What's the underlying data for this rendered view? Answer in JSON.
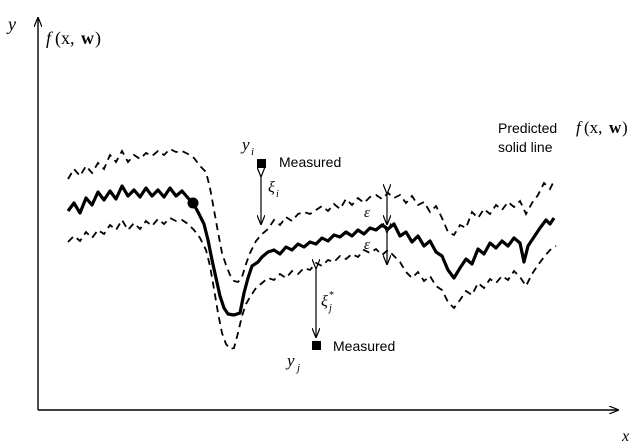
{
  "labels": {
    "y_axis": "y",
    "x_axis": "x",
    "f_axis_f": "f",
    "f_axis_args": "(x,",
    "f_axis_w": "w",
    "f_axis_close": ")",
    "y_i": "y",
    "y_i_sub": "i",
    "y_j": "y",
    "y_j_sub": "j",
    "xi_i": "ξ",
    "xi_i_sub": "i",
    "xi_j": "ξ",
    "xi_j_sub": "j",
    "xi_j_sup": "*",
    "eps_top": "ε",
    "eps_bottom": "ε",
    "measured_top": "Measured",
    "measured_bottom": "Measured",
    "predicted_line1": "Predicted",
    "predicted_line2": "solid line",
    "predicted_f": "f",
    "predicted_args": "(x,",
    "predicted_w": "w",
    "predicted_close": ")"
  },
  "colors": {
    "ink": "#000000",
    "background": "#ffffff"
  }
}
